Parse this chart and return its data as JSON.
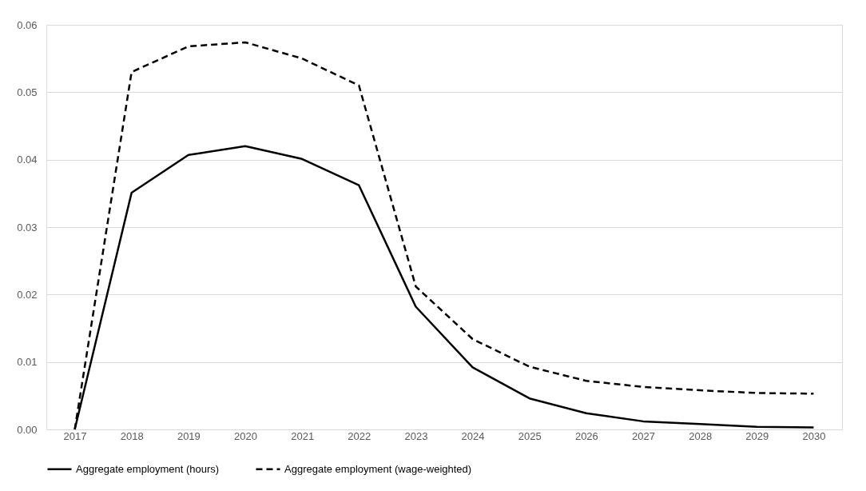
{
  "chart_data": {
    "type": "line",
    "categories": [
      "2017",
      "2018",
      "2019",
      "2020",
      "2021",
      "2022",
      "2023",
      "2024",
      "2025",
      "2026",
      "2027",
      "2028",
      "2029",
      "2030"
    ],
    "series": [
      {
        "name": "Aggregate employment (hours)",
        "color": "#000000",
        "line_style": "solid",
        "values": [
          0,
          0.0351,
          0.0407,
          0.042,
          0.0401,
          0.0362,
          0.0182,
          0.0092,
          0.0046,
          0.0024,
          0.0012,
          0.0008,
          0.0004,
          0.0003
        ]
      },
      {
        "name": "Aggregate employment (wage-weighted)",
        "color": "#000000",
        "line_style": "dashed",
        "values": [
          0,
          0.053,
          0.0568,
          0.0574,
          0.055,
          0.051,
          0.0212,
          0.0134,
          0.0093,
          0.0072,
          0.0063,
          0.0058,
          0.0054,
          0.0053
        ]
      }
    ],
    "ylim": [
      0,
      0.06
    ],
    "yticks": [
      {
        "value": 0,
        "label": "0.00"
      },
      {
        "value": 0.01,
        "label": "0.01"
      },
      {
        "value": 0.02,
        "label": "0.02"
      },
      {
        "value": 0.03,
        "label": "0.03"
      },
      {
        "value": 0.04,
        "label": "0.04"
      },
      {
        "value": 0.05,
        "label": "0.05"
      },
      {
        "value": 0.06,
        "label": "0.06"
      }
    ],
    "grid": "y",
    "legend": "bottom",
    "marker": "none"
  }
}
